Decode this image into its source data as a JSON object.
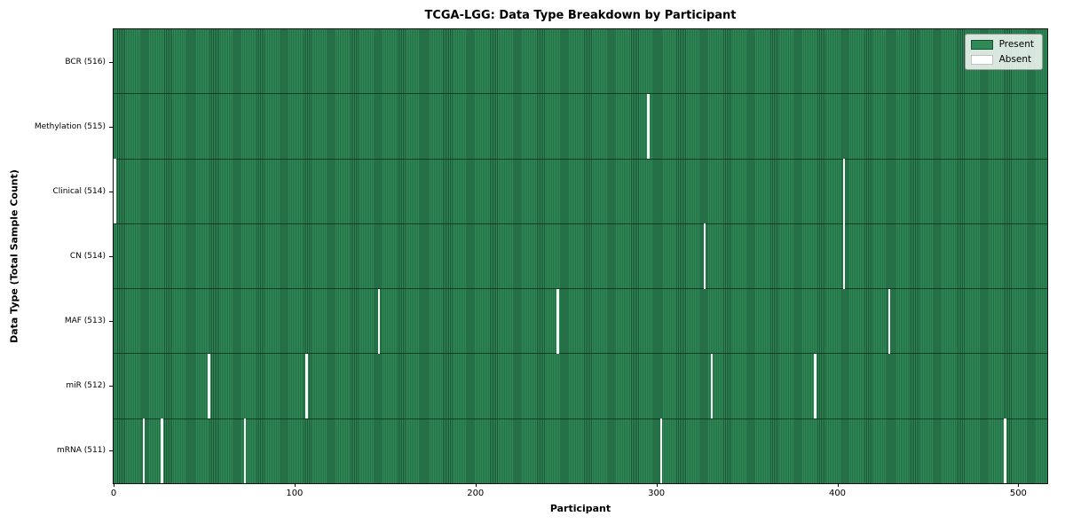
{
  "chart_data": {
    "type": "heatmap",
    "title": "TCGA-LGG: Data Type Breakdown by Participant",
    "xlabel": "Participant",
    "ylabel": "Data Type (Total Sample Count)",
    "x_ticks": [
      0,
      100,
      200,
      300,
      400,
      500
    ],
    "x_range": [
      0,
      516
    ],
    "n_participants": 516,
    "rows": [
      {
        "label": "BCR (516)",
        "present_count": 516,
        "absent_participants": []
      },
      {
        "label": "Methylation (515)",
        "present_count": 515,
        "absent_participants": [
          295
        ]
      },
      {
        "label": "Clinical (514)",
        "present_count": 514,
        "absent_participants": [
          0,
          403
        ]
      },
      {
        "label": "CN (514)",
        "present_count": 514,
        "absent_participants": [
          326,
          403
        ]
      },
      {
        "label": "MAF (513)",
        "present_count": 513,
        "absent_participants": [
          146,
          245,
          428
        ]
      },
      {
        "label": "miR (512)",
        "present_count": 512,
        "absent_participants": [
          52,
          106,
          330,
          387
        ]
      },
      {
        "label": "mRNA (511)",
        "present_count": 511,
        "absent_participants": [
          16,
          26,
          72,
          302,
          492
        ]
      }
    ],
    "legend": {
      "position": "upper right",
      "entries": [
        {
          "label": "Present",
          "color": "#2e8b57"
        },
        {
          "label": "Absent",
          "color": "#ffffff"
        }
      ]
    },
    "colors": {
      "present": "#2e8b57",
      "bar_edge": "#1c5435",
      "absent": "#f7f9f7",
      "spine": "#141414"
    },
    "grid": false
  }
}
